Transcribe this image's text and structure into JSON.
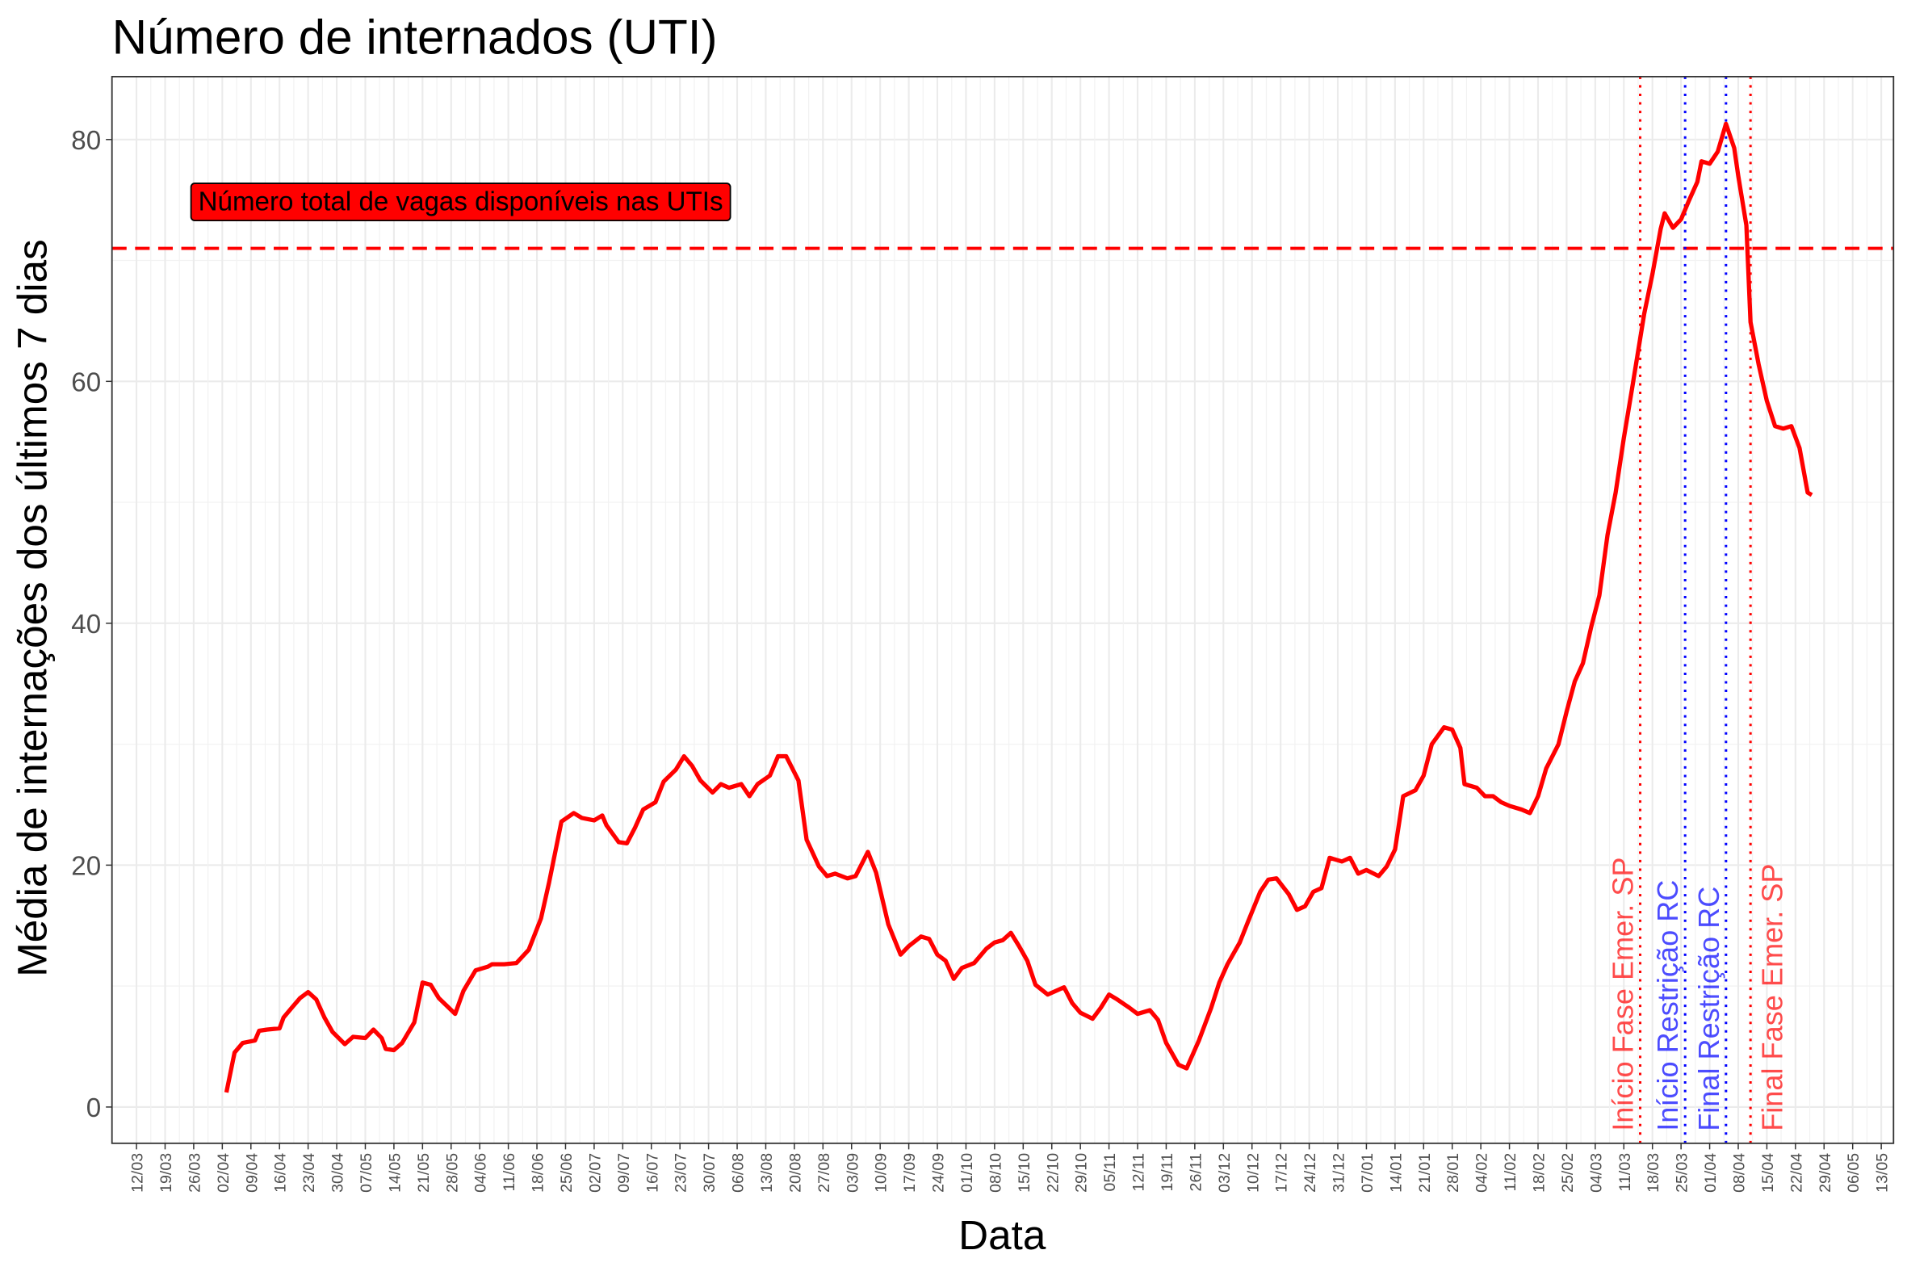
{
  "chart_data": {
    "type": "line",
    "title": "Número de internados (UTI)",
    "xlabel": "Data",
    "ylabel": "Média de internações dos últimos 7 dias",
    "xlim": [
      -6,
      430
    ],
    "ylim": [
      -3,
      85.2
    ],
    "yticks": [
      0,
      20,
      40,
      60,
      80
    ],
    "xticks": [
      {
        "value": 0,
        "label": "12/03"
      },
      {
        "value": 7,
        "label": "19/03"
      },
      {
        "value": 14,
        "label": "26/03"
      },
      {
        "value": 21,
        "label": "02/04"
      },
      {
        "value": 28,
        "label": "09/04"
      },
      {
        "value": 35,
        "label": "16/04"
      },
      {
        "value": 42,
        "label": "23/04"
      },
      {
        "value": 49,
        "label": "30/04"
      },
      {
        "value": 56,
        "label": "07/05"
      },
      {
        "value": 63,
        "label": "14/05"
      },
      {
        "value": 70,
        "label": "21/05"
      },
      {
        "value": 77,
        "label": "28/05"
      },
      {
        "value": 84,
        "label": "04/06"
      },
      {
        "value": 91,
        "label": "11/06"
      },
      {
        "value": 98,
        "label": "18/06"
      },
      {
        "value": 105,
        "label": "25/06"
      },
      {
        "value": 112,
        "label": "02/07"
      },
      {
        "value": 119,
        "label": "09/07"
      },
      {
        "value": 126,
        "label": "16/07"
      },
      {
        "value": 133,
        "label": "23/07"
      },
      {
        "value": 140,
        "label": "30/07"
      },
      {
        "value": 147,
        "label": "06/08"
      },
      {
        "value": 154,
        "label": "13/08"
      },
      {
        "value": 161,
        "label": "20/08"
      },
      {
        "value": 168,
        "label": "27/08"
      },
      {
        "value": 175,
        "label": "03/09"
      },
      {
        "value": 182,
        "label": "10/09"
      },
      {
        "value": 189,
        "label": "17/09"
      },
      {
        "value": 196,
        "label": "24/09"
      },
      {
        "value": 203,
        "label": "01/10"
      },
      {
        "value": 210,
        "label": "08/10"
      },
      {
        "value": 217,
        "label": "15/10"
      },
      {
        "value": 224,
        "label": "22/10"
      },
      {
        "value": 231,
        "label": "29/10"
      },
      {
        "value": 238,
        "label": "05/11"
      },
      {
        "value": 245,
        "label": "12/11"
      },
      {
        "value": 252,
        "label": "19/11"
      },
      {
        "value": 259,
        "label": "26/11"
      },
      {
        "value": 266,
        "label": "03/12"
      },
      {
        "value": 273,
        "label": "10/12"
      },
      {
        "value": 280,
        "label": "17/12"
      },
      {
        "value": 287,
        "label": "24/12"
      },
      {
        "value": 294,
        "label": "31/12"
      },
      {
        "value": 301,
        "label": "07/01"
      },
      {
        "value": 308,
        "label": "14/01"
      },
      {
        "value": 315,
        "label": "21/01"
      },
      {
        "value": 322,
        "label": "28/01"
      },
      {
        "value": 329,
        "label": "04/02"
      },
      {
        "value": 336,
        "label": "11/02"
      },
      {
        "value": 343,
        "label": "18/02"
      },
      {
        "value": 350,
        "label": "25/02"
      },
      {
        "value": 357,
        "label": "04/03"
      },
      {
        "value": 364,
        "label": "11/03"
      },
      {
        "value": 371,
        "label": "18/03"
      },
      {
        "value": 378,
        "label": "25/03"
      },
      {
        "value": 385,
        "label": "01/04"
      },
      {
        "value": 392,
        "label": "08/04"
      },
      {
        "value": 399,
        "label": "15/04"
      },
      {
        "value": 406,
        "label": "22/04"
      },
      {
        "value": 413,
        "label": "29/04"
      },
      {
        "value": 420,
        "label": "06/05"
      },
      {
        "value": 427,
        "label": "13/05"
      }
    ],
    "grid": true,
    "series": [
      {
        "color": "#ff0000",
        "x": [
          22,
          24,
          26,
          29,
          30,
          32,
          35,
          36,
          38,
          40,
          42,
          44,
          46,
          48,
          51,
          53,
          56,
          58,
          60,
          61,
          63,
          65,
          68,
          70,
          72,
          74,
          78,
          80,
          83,
          86,
          87,
          90,
          93,
          96,
          99,
          101,
          104,
          107,
          109,
          112,
          114,
          115,
          118,
          120,
          122,
          124,
          127,
          129,
          132,
          134,
          136,
          138,
          141,
          143,
          145,
          148,
          150,
          152,
          155,
          157,
          159,
          162,
          164,
          167,
          169,
          171,
          174,
          176,
          179,
          181,
          184,
          187,
          189,
          192,
          194,
          196,
          198,
          200,
          202,
          205,
          208,
          210,
          212,
          214,
          216,
          218,
          220,
          223,
          225,
          227,
          229,
          231,
          234,
          236,
          238,
          240,
          243,
          245,
          248,
          250,
          252,
          255,
          257,
          260,
          263,
          265,
          267,
          270,
          272,
          275,
          277,
          279,
          282,
          284,
          286,
          288,
          290,
          292,
          295,
          297,
          299,
          301,
          304,
          306,
          308,
          310,
          313,
          315,
          317,
          320,
          322,
          324,
          325,
          328,
          330,
          332,
          334,
          336,
          339,
          341,
          343,
          345,
          348,
          350,
          352,
          354,
          356,
          358,
          360,
          362,
          364,
          366,
          369,
          371,
          373,
          374,
          376,
          378,
          380,
          382,
          383,
          385,
          387,
          389,
          391,
          392,
          394,
          395,
          397,
          399,
          401,
          403,
          405,
          407,
          409,
          410
        ],
        "values": [
          1.2,
          4.5,
          5.3,
          5.5,
          6.3,
          6.4,
          6.5,
          7.4,
          8.2,
          9,
          9.5,
          8.9,
          7.4,
          6.2,
          5.2,
          5.8,
          5.7,
          6.4,
          5.7,
          4.8,
          4.7,
          5.3,
          7,
          10.3,
          10.1,
          9,
          7.7,
          9.6,
          11.3,
          11.6,
          11.8,
          11.8,
          11.9,
          13,
          15.6,
          18.6,
          23.6,
          24.3,
          23.9,
          23.7,
          24.1,
          23.3,
          21.9,
          21.8,
          23.1,
          24.6,
          25.2,
          26.9,
          27.9,
          29,
          28.2,
          27,
          26,
          26.7,
          26.4,
          26.7,
          25.7,
          26.7,
          27.4,
          29,
          29,
          27,
          22.1,
          19.9,
          19.1,
          19.3,
          18.9,
          19.1,
          21.1,
          19.4,
          15.1,
          12.6,
          13.3,
          14.1,
          13.9,
          12.6,
          12.1,
          10.6,
          11.5,
          11.9,
          13.1,
          13.6,
          13.8,
          14.4,
          13.3,
          12.1,
          10.1,
          9.3,
          9.6,
          9.9,
          8.6,
          7.8,
          7.3,
          8.2,
          9.3,
          8.9,
          8.2,
          7.7,
          8,
          7.2,
          5.3,
          3.5,
          3.2,
          5.5,
          8.2,
          10.3,
          11.8,
          13.6,
          15.3,
          17.8,
          18.8,
          18.9,
          17.6,
          16.3,
          16.6,
          17.8,
          18.1,
          20.6,
          20.3,
          20.6,
          19.3,
          19.6,
          19.1,
          19.9,
          21.3,
          25.7,
          26.2,
          27.4,
          30,
          31.4,
          31.2,
          29.7,
          26.7,
          26.4,
          25.7,
          25.7,
          25.2,
          24.9,
          24.6,
          24.3,
          25.7,
          28,
          30,
          32.7,
          35.2,
          36.7,
          39.7,
          42.3,
          47.3,
          50.8,
          55.3,
          59.4,
          65.6,
          68.9,
          72.6,
          73.9,
          72.7,
          73.4,
          75,
          76.5,
          78.2,
          78,
          79,
          81.3,
          79.3,
          77,
          72.9,
          64.9,
          61.4,
          58.4,
          56.3,
          56.1,
          56.3,
          54.5,
          50.8,
          50.6
        ]
      }
    ],
    "hline": {
      "y": 71,
      "color": "#ff0000",
      "label": "Número total de vagas disponíveis nas UTIs"
    },
    "vlines": [
      {
        "x": 368,
        "label": "Início Fase Emer. SP",
        "color": "#ff0000"
      },
      {
        "x": 379,
        "label": "Início Restrição RC",
        "color": "#0000ff"
      },
      {
        "x": 389,
        "label": "Final Restrição RC",
        "color": "#0000ff"
      },
      {
        "x": 395,
        "label": "Final Fase Emer. SP",
        "color": "#ff0000"
      }
    ]
  }
}
